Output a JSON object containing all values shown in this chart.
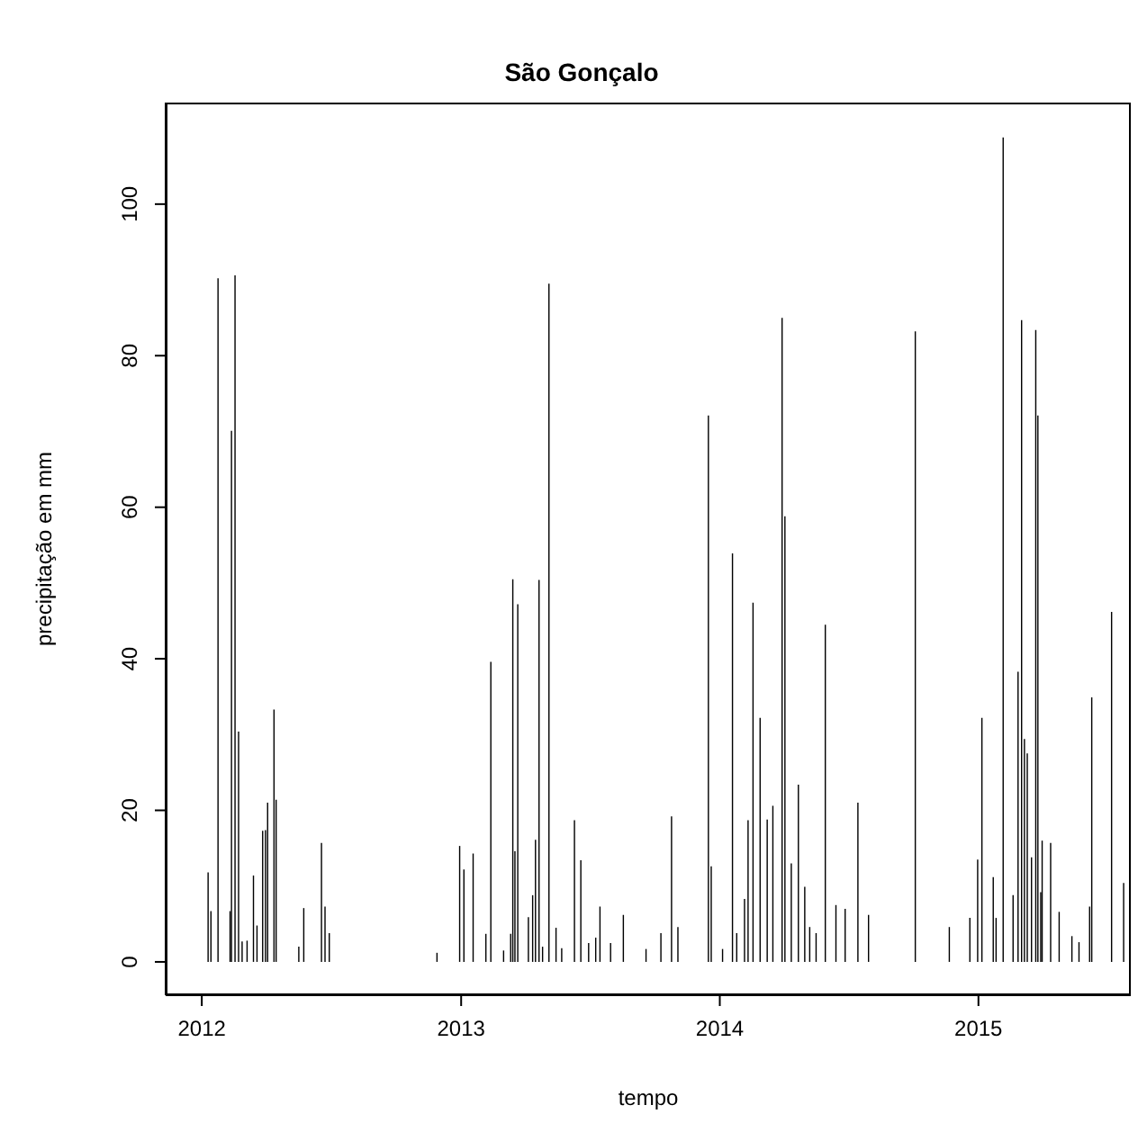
{
  "chart_data": {
    "type": "bar",
    "title": "São Gonçalo",
    "xlabel": "tempo",
    "ylabel": "precipitação em mm",
    "x": [
      "2012-01-10",
      "2012-01-14",
      "2012-01-24",
      "2012-02-10",
      "2012-02-12",
      "2012-02-17",
      "2012-02-22",
      "2012-02-27",
      "2012-03-05",
      "2012-03-14",
      "2012-03-19",
      "2012-03-27",
      "2012-03-31",
      "2012-04-03",
      "2012-04-12",
      "2012-04-15",
      "2012-05-17",
      "2012-05-24",
      "2012-06-18",
      "2012-06-23",
      "2012-06-29",
      "2012-11-28",
      "2012-12-30",
      "2013-01-05",
      "2013-01-18",
      "2013-02-05",
      "2013-02-12",
      "2013-03-02",
      "2013-03-12",
      "2013-03-15",
      "2013-03-18",
      "2013-03-22",
      "2013-04-06",
      "2013-04-12",
      "2013-04-16",
      "2013-04-21",
      "2013-04-26",
      "2013-05-05",
      "2013-05-15",
      "2013-05-23",
      "2013-06-10",
      "2013-06-19",
      "2013-06-30",
      "2013-07-10",
      "2013-07-16",
      "2013-07-31",
      "2013-08-18",
      "2013-09-19",
      "2013-10-10",
      "2013-10-25",
      "2013-11-03",
      "2013-12-16",
      "2013-12-20",
      "2014-01-05",
      "2014-01-19",
      "2014-01-25",
      "2014-02-05",
      "2014-02-10",
      "2014-02-17",
      "2014-02-27",
      "2014-03-09",
      "2014-03-17",
      "2014-03-30",
      "2014-04-03",
      "2014-04-12",
      "2014-04-22",
      "2014-05-01",
      "2014-05-08",
      "2014-05-17",
      "2014-05-30",
      "2014-06-14",
      "2014-06-27",
      "2014-07-15",
      "2014-07-30",
      "2014-10-04",
      "2014-11-21",
      "2014-12-20",
      "2014-12-31",
      "2015-01-06",
      "2015-01-22",
      "2015-01-26",
      "2015-02-05",
      "2015-02-19",
      "2015-02-26",
      "2015-03-03",
      "2015-03-07",
      "2015-03-11",
      "2015-03-17",
      "2015-03-23",
      "2015-03-26",
      "2015-03-30",
      "2015-04-01",
      "2015-04-13",
      "2015-04-25",
      "2015-05-13",
      "2015-05-23",
      "2015-06-07",
      "2015-06-10",
      "2015-07-08",
      "2015-07-25"
    ],
    "values": [
      11.8,
      6.7,
      90.2,
      6.7,
      70.1,
      90.6,
      30.4,
      2.7,
      2.8,
      11.4,
      4.8,
      17.3,
      17.4,
      21.0,
      33.3,
      21.4,
      2.0,
      7.1,
      15.7,
      7.3,
      3.8,
      1.2,
      15.3,
      12.2,
      14.3,
      3.7,
      39.6,
      1.5,
      3.7,
      50.5,
      14.6,
      47.2,
      5.9,
      8.8,
      16.1,
      50.4,
      2.0,
      89.5,
      4.5,
      1.8,
      18.7,
      13.4,
      2.5,
      3.2,
      7.3,
      2.5,
      6.2,
      1.7,
      3.8,
      19.2,
      4.6,
      72.1,
      12.6,
      1.7,
      53.9,
      3.8,
      8.3,
      18.7,
      47.4,
      32.2,
      18.8,
      20.6,
      85.0,
      58.8,
      13.0,
      23.4,
      9.9,
      4.6,
      3.8,
      44.5,
      7.5,
      7.0,
      21.0,
      6.2,
      83.2,
      4.6,
      5.8,
      13.5,
      32.2,
      11.2,
      5.8,
      108.8,
      8.8,
      38.3,
      84.7,
      29.4,
      27.5,
      13.8,
      83.4,
      72.1,
      9.2,
      16.0,
      15.7,
      6.6,
      3.4,
      2.6,
      7.3,
      34.9,
      46.2,
      10.4
    ],
    "color": "#000000",
    "xlim": [
      "2011-11-11",
      "2015-08-04"
    ],
    "xticks": [
      {
        "value": "2012-01-01",
        "label": "2012"
      },
      {
        "value": "2013-01-01",
        "label": "2013"
      },
      {
        "value": "2014-01-01",
        "label": "2014"
      },
      {
        "value": "2015-01-01",
        "label": "2015"
      }
    ],
    "ylim": [
      -4.4,
      113.4
    ],
    "yticks": [
      0,
      20,
      40,
      60,
      80,
      100
    ],
    "grid": false,
    "legend": false
  }
}
